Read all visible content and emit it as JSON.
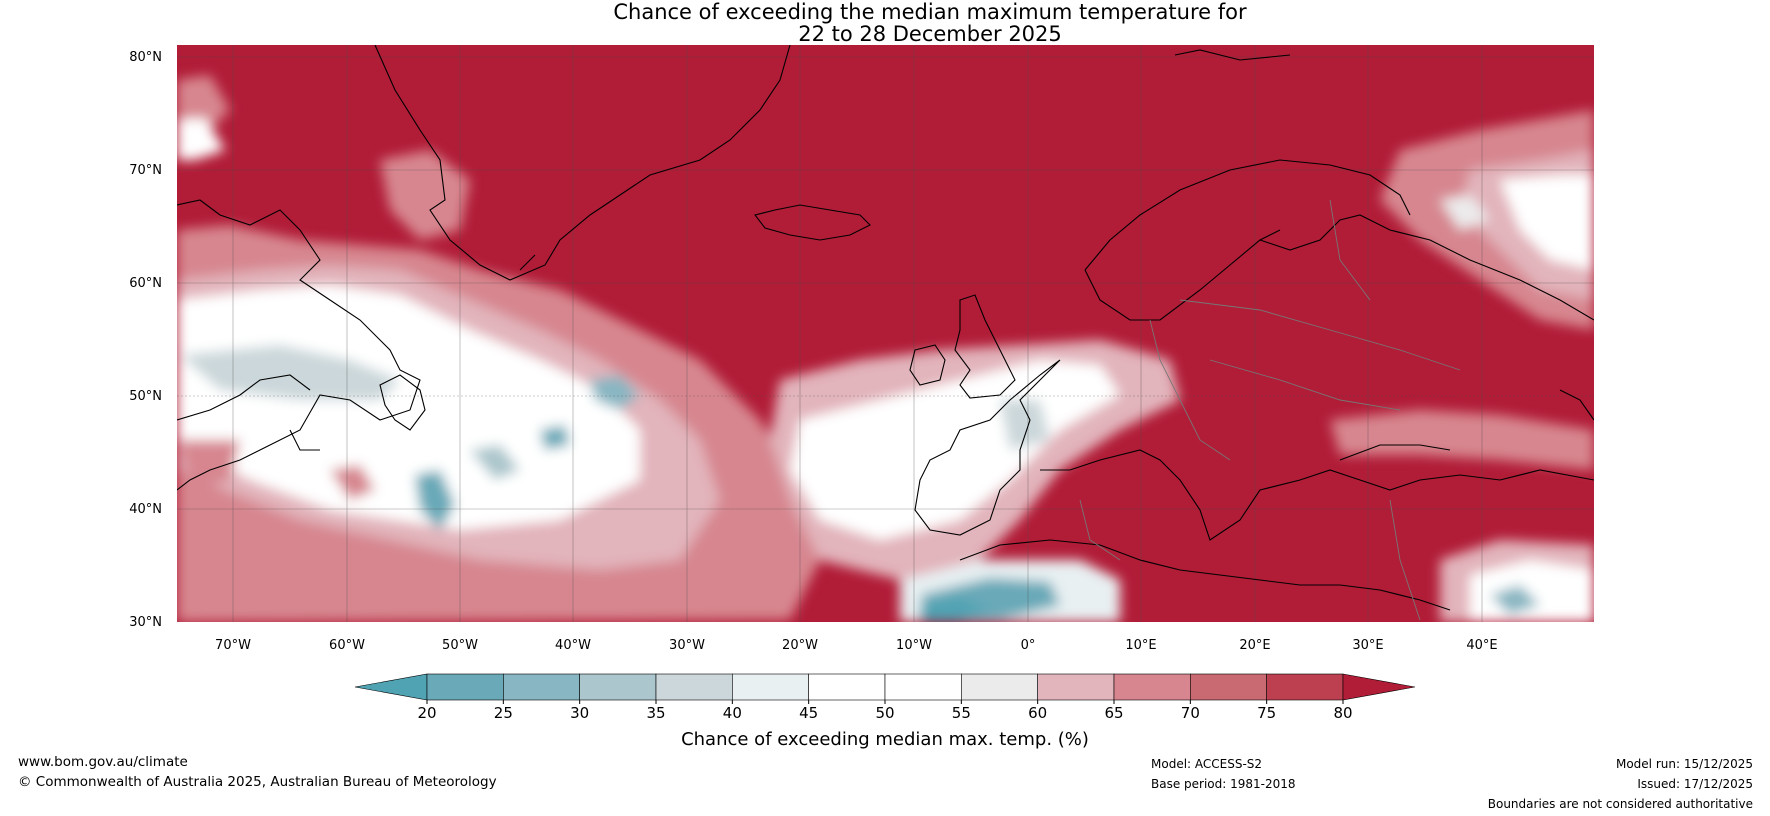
{
  "title": {
    "line1": "Chance of exceeding the median maximum temperature for",
    "line2": "22 to 28 December 2025"
  },
  "map": {
    "lat_labels": [
      "80°N",
      "70°N",
      "60°N",
      "50°N",
      "40°N",
      "30°N"
    ],
    "lon_labels": [
      "70°W",
      "60°W",
      "50°W",
      "40°W",
      "30°W",
      "20°W",
      "10°W",
      "0°",
      "10°E",
      "20°E",
      "30°E",
      "40°E"
    ],
    "extent": {
      "lon_min": -75,
      "lon_max": 50,
      "lat_min": 30,
      "lat_max": 81
    }
  },
  "colorbar": {
    "ticks": [
      "20",
      "25",
      "30",
      "35",
      "40",
      "45",
      "50",
      "55",
      "60",
      "65",
      "70",
      "75",
      "80"
    ],
    "colors": [
      "#4fa3b3",
      "#69a9b8",
      "#88b6c2",
      "#abc6cc",
      "#cbd7da",
      "#e8f0f2",
      "#ffffff",
      "#ffffff",
      "#ecebec",
      "#e2b4bb",
      "#d7868f",
      "#c96a73",
      "#bd4050",
      "#b11c37"
    ],
    "label": "Chance of exceeding median max. temp. (%)"
  },
  "footer": {
    "website": "www.bom.gov.au/climate",
    "copyright": "© Commonwealth of Australia 2025, Australian Bureau of Meteorology",
    "model": "Model: ACCESS-S2",
    "base_period": "Base period: 1981-2018",
    "model_run": "Model run: 15/12/2025",
    "issued": "Issued: 17/12/2025",
    "disclaimer": "Boundaries are not considered authoritative"
  }
}
